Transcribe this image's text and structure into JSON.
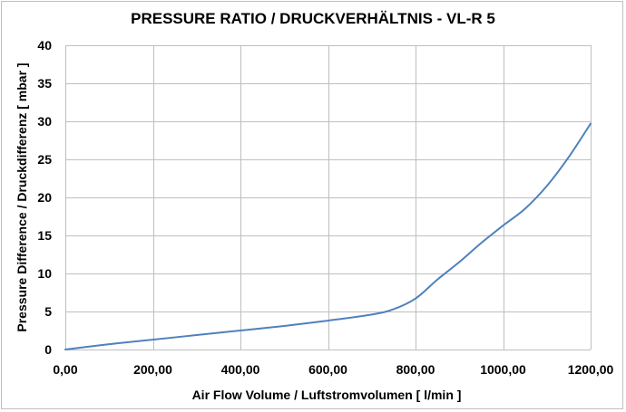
{
  "chart_data": {
    "type": "line",
    "title": "PRESSURE RATIO / DRUCKVERHÄLTNIS - VL-R 5",
    "xlabel": "Air Flow Volume / Luftstromvolumen [ l/min ]",
    "ylabel": "Pressure Difference / Druckdifferenz [ mbar ]",
    "xlim": [
      0,
      1200
    ],
    "ylim": [
      0,
      40
    ],
    "x_ticks": [
      0,
      200,
      400,
      600,
      800,
      1000,
      1200
    ],
    "x_tick_labels": [
      "0,00",
      "200,00",
      "400,00",
      "600,00",
      "800,00",
      "1000,00",
      "1200,00"
    ],
    "y_ticks": [
      0,
      5,
      10,
      15,
      20,
      25,
      30,
      35,
      40
    ],
    "y_tick_labels": [
      "0",
      "5",
      "10",
      "15",
      "20",
      "25",
      "30",
      "35",
      "40"
    ],
    "grid": "vertical-and-horizontal",
    "legend": "none",
    "series": [
      {
        "color": "#4f81bd",
        "x": [
          0,
          100,
          200,
          300,
          400,
          500,
          600,
          700,
          750,
          800,
          850,
          900,
          950,
          1000,
          1050,
          1100,
          1150,
          1200
        ],
        "y": [
          0,
          0.7,
          1.3,
          1.9,
          2.5,
          3.1,
          3.8,
          4.6,
          5.3,
          6.7,
          9.2,
          11.5,
          14.0,
          16.3,
          18.5,
          21.5,
          25.3,
          29.7
        ]
      }
    ]
  }
}
